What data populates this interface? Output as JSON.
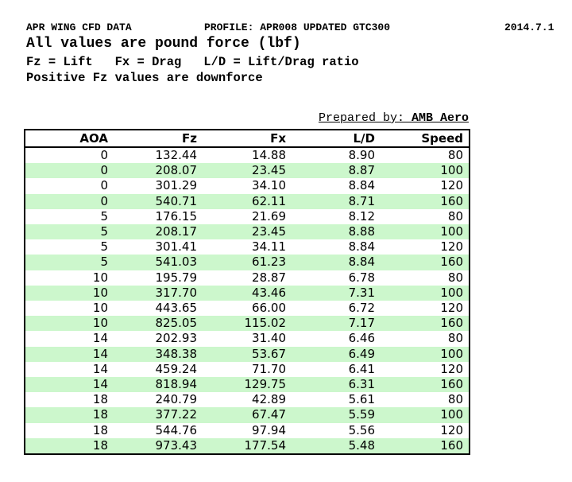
{
  "header": {
    "title": "APR WING CFD DATA",
    "profile": "PROFILE: APR008 UPDATED GTC300",
    "date": "2014.7.1",
    "subtitle": "All values are pound force (lbf)",
    "legend": "Fz = Lift   Fx = Drag   L/D = Lift/Drag ratio",
    "note": "Positive Fz values are downforce"
  },
  "prepared_by": {
    "label": "Prepared by: ",
    "value": "AMB Aero"
  },
  "table": {
    "columns": [
      "AOA",
      "Fz",
      "Fx",
      "L/D",
      "Speed"
    ],
    "rows": [
      [
        "0",
        "132.44",
        "14.88",
        "8.90",
        "80"
      ],
      [
        "0",
        "208.07",
        "23.45",
        "8.87",
        "100"
      ],
      [
        "0",
        "301.29",
        "34.10",
        "8.84",
        "120"
      ],
      [
        "0",
        "540.71",
        "62.11",
        "8.71",
        "160"
      ],
      [
        "5",
        "176.15",
        "21.69",
        "8.12",
        "80"
      ],
      [
        "5",
        "208.17",
        "23.45",
        "8.88",
        "100"
      ],
      [
        "5",
        "301.41",
        "34.11",
        "8.84",
        "120"
      ],
      [
        "5",
        "541.03",
        "61.23",
        "8.84",
        "160"
      ],
      [
        "10",
        "195.79",
        "28.87",
        "6.78",
        "80"
      ],
      [
        "10",
        "317.70",
        "43.46",
        "7.31",
        "100"
      ],
      [
        "10",
        "443.65",
        "66.00",
        "6.72",
        "120"
      ],
      [
        "10",
        "825.05",
        "115.02",
        "7.17",
        "160"
      ],
      [
        "14",
        "202.93",
        "31.40",
        "6.46",
        "80"
      ],
      [
        "14",
        "348.38",
        "53.67",
        "6.49",
        "100"
      ],
      [
        "14",
        "459.24",
        "71.70",
        "6.41",
        "120"
      ],
      [
        "14",
        "818.94",
        "129.75",
        "6.31",
        "160"
      ],
      [
        "18",
        "240.79",
        "42.89",
        "5.61",
        "80"
      ],
      [
        "18",
        "377.22",
        "67.47",
        "5.59",
        "100"
      ],
      [
        "18",
        "544.76",
        "97.94",
        "5.56",
        "120"
      ],
      [
        "18",
        "973.43",
        "177.54",
        "5.48",
        "160"
      ]
    ]
  },
  "colors": {
    "stripe_green": "#ccf7cc",
    "border_black": "#000000",
    "text_black": "#000000",
    "background_white": "#ffffff"
  }
}
